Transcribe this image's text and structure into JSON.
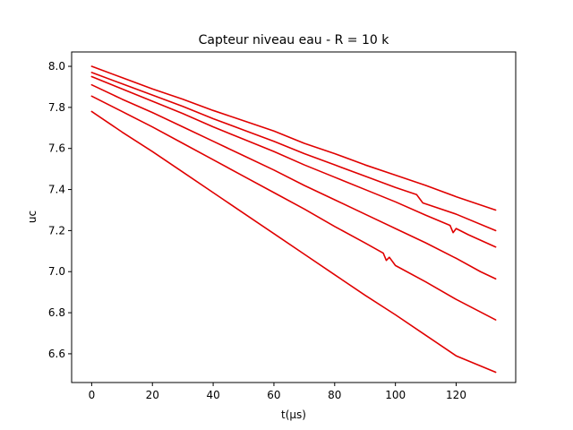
{
  "chart_data": {
    "type": "line",
    "title": "Capteur niveau eau - R = 10 k",
    "xlabel": "t(µs)",
    "ylabel": "uc",
    "xlim": [
      -6.6,
      139.6
    ],
    "ylim": [
      6.46,
      8.07
    ],
    "xticks": [
      0,
      20,
      40,
      60,
      80,
      100,
      120
    ],
    "yticks": [
      6.6,
      6.8,
      7.0,
      7.2,
      7.4,
      7.6,
      7.8,
      8.0
    ],
    "ytick_labels": [
      "6.6",
      "6.8",
      "7.0",
      "7.2",
      "7.4",
      "7.6",
      "7.8",
      "8.0"
    ],
    "grid": false,
    "line_color": "#e00000",
    "series": [
      {
        "x": [
          0,
          10,
          20,
          30,
          40,
          50,
          60,
          70,
          80,
          90,
          100,
          110,
          120,
          133
        ],
        "values": [
          8.0,
          7.945,
          7.89,
          7.84,
          7.785,
          7.735,
          7.685,
          7.625,
          7.575,
          7.52,
          7.47,
          7.42,
          7.365,
          7.3
        ]
      },
      {
        "x": [
          0,
          10,
          20,
          30,
          40,
          50,
          60,
          70,
          80,
          90,
          100,
          107,
          108,
          109,
          110,
          120,
          133
        ],
        "values": [
          7.97,
          7.915,
          7.86,
          7.805,
          7.745,
          7.69,
          7.635,
          7.575,
          7.52,
          7.465,
          7.41,
          7.375,
          7.355,
          7.335,
          7.33,
          7.28,
          7.2
        ]
      },
      {
        "x": [
          0,
          10,
          20,
          30,
          40,
          50,
          60,
          70,
          80,
          90,
          100,
          110,
          118,
          119,
          120,
          124,
          133
        ],
        "values": [
          7.95,
          7.89,
          7.83,
          7.77,
          7.705,
          7.645,
          7.585,
          7.52,
          7.46,
          7.4,
          7.34,
          7.275,
          7.225,
          7.19,
          7.21,
          7.18,
          7.12
        ]
      },
      {
        "x": [
          0,
          10,
          20,
          30,
          40,
          50,
          60,
          70,
          80,
          90,
          100,
          110,
          120,
          128,
          133
        ],
        "values": [
          7.91,
          7.84,
          7.775,
          7.705,
          7.635,
          7.565,
          7.495,
          7.42,
          7.35,
          7.28,
          7.21,
          7.14,
          7.065,
          7.0,
          6.965
        ]
      },
      {
        "x": [
          0,
          10,
          20,
          30,
          40,
          50,
          60,
          70,
          80,
          90,
          96,
          97,
          98,
          100,
          110,
          120,
          133
        ],
        "values": [
          7.855,
          7.78,
          7.705,
          7.625,
          7.545,
          7.465,
          7.385,
          7.305,
          7.22,
          7.14,
          7.09,
          7.055,
          7.07,
          7.03,
          6.95,
          6.865,
          6.765
        ]
      },
      {
        "x": [
          0,
          10,
          20,
          30,
          40,
          50,
          60,
          70,
          80,
          90,
          100,
          110,
          120,
          133
        ],
        "values": [
          7.78,
          7.68,
          7.585,
          7.485,
          7.385,
          7.285,
          7.185,
          7.085,
          6.985,
          6.885,
          6.79,
          6.69,
          6.59,
          6.51
        ]
      }
    ]
  }
}
